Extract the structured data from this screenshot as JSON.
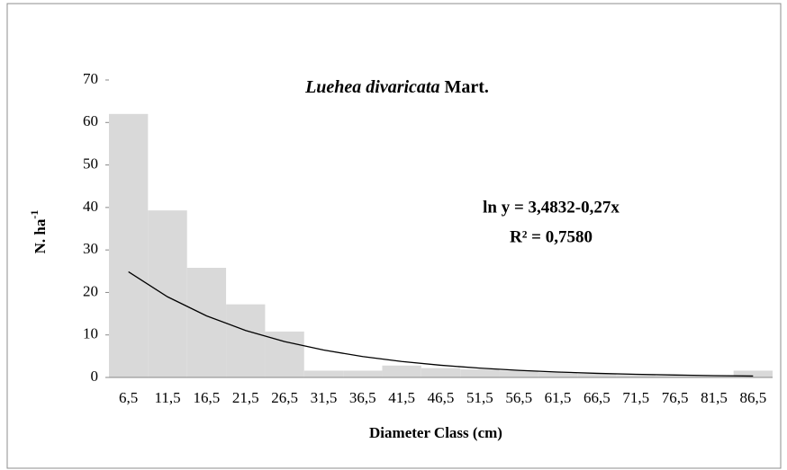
{
  "chart_data": {
    "type": "bar",
    "title": [
      "Luehea divaricata",
      "Mart."
    ],
    "xlabel": "Diameter Class (cm)",
    "ylabel": [
      "N. ha",
      "-1"
    ],
    "categories": [
      "6,5",
      "11,5",
      "16,5",
      "21,5",
      "26,5",
      "31,5",
      "36,5",
      "41,5",
      "46,5",
      "51,5",
      "56,5",
      "61,5",
      "66,5",
      "71,5",
      "76,5",
      "81,5",
      "86,5"
    ],
    "values": [
      62,
      39.3,
      25.8,
      17.2,
      10.8,
      1.6,
      1.6,
      2.8,
      2.2,
      1.9,
      1.6,
      1.2,
      0.9,
      0.6,
      0.4,
      0.4,
      1.6
    ],
    "color": "#d9d9d9",
    "trend": {
      "color": "#000000",
      "values": [
        24.86,
        18.98,
        14.49,
        11.06,
        8.44,
        6.44,
        4.92,
        3.75,
        2.87,
        2.19,
        1.67,
        1.27,
        0.97,
        0.74,
        0.57,
        0.43,
        0.33
      ]
    },
    "annotations": [
      "ln y = 3,4832-0,27x",
      "R² = 0,7580"
    ],
    "ylim": [
      0,
      70
    ],
    "yticks": [
      0,
      10,
      20,
      30,
      40,
      50,
      60,
      70
    ],
    "grid": false
  }
}
